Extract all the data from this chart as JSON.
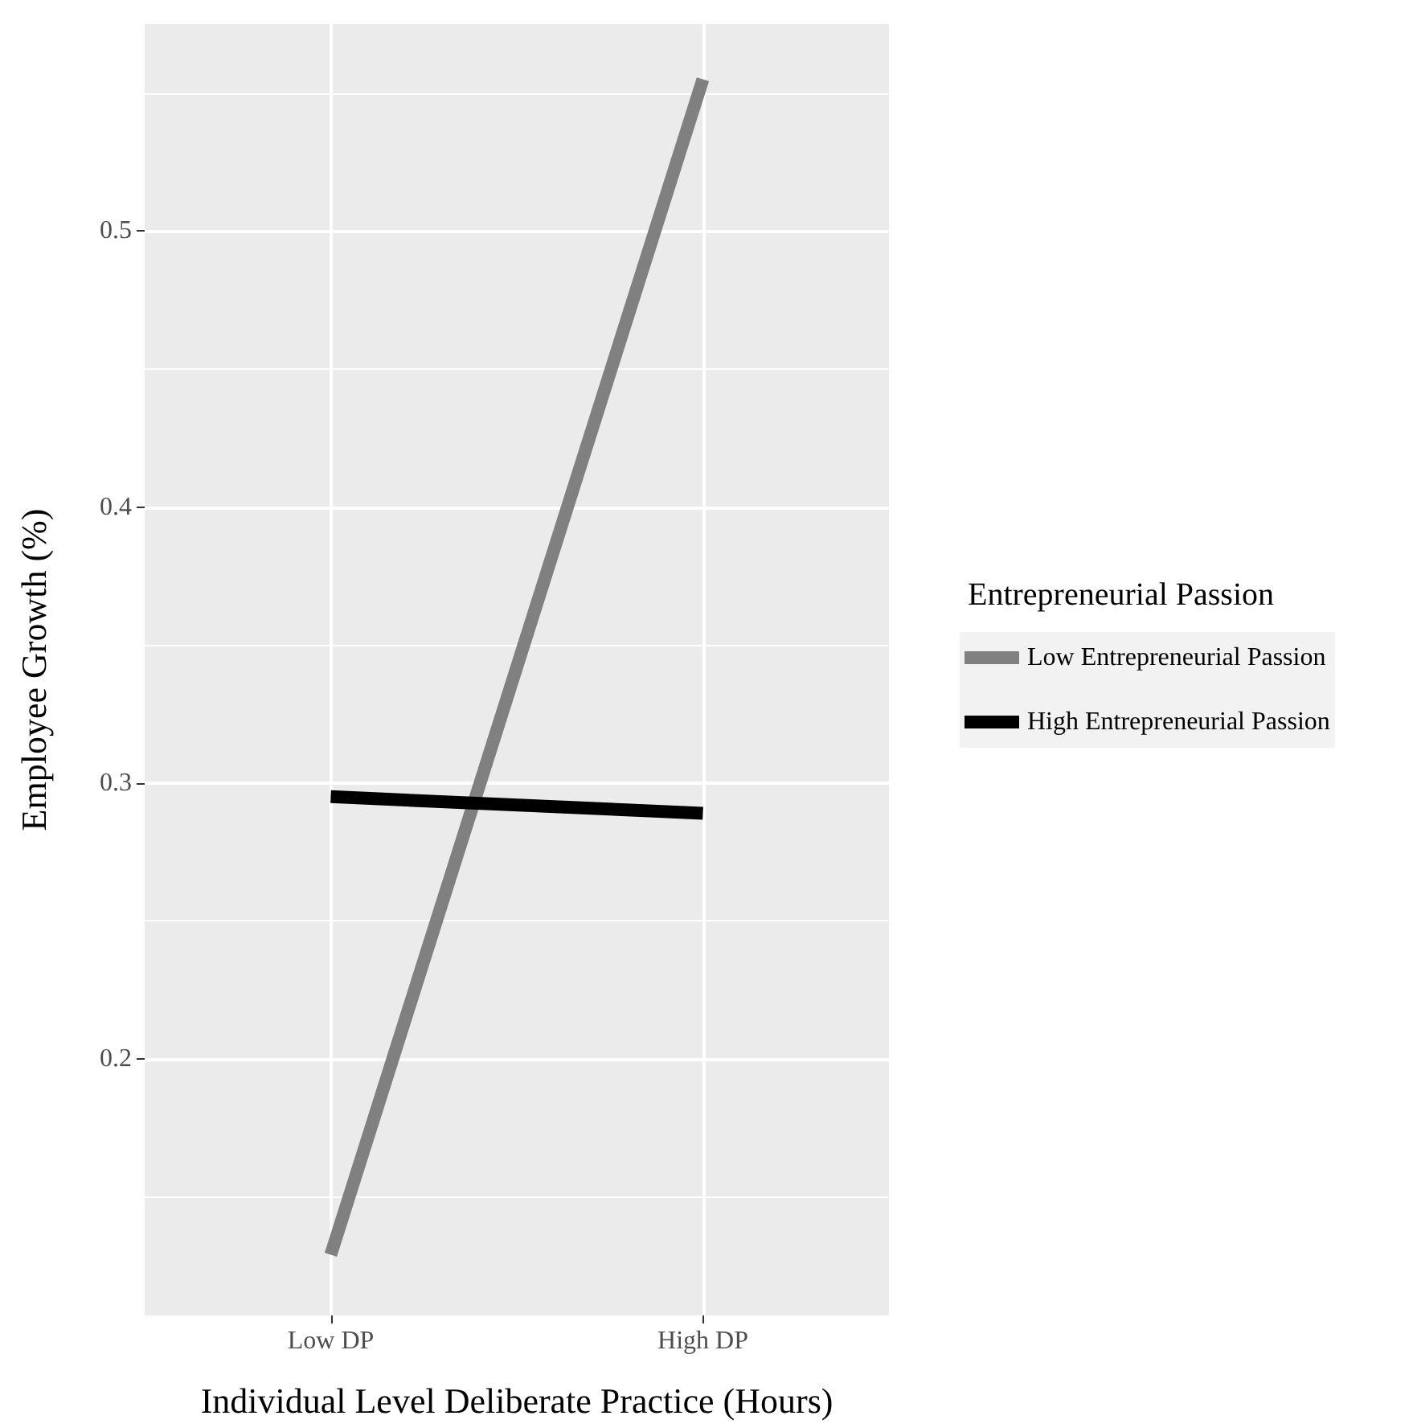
{
  "chart_data": {
    "type": "line",
    "xlabel": "Individual Level Deliberate Practice (Hours)",
    "ylabel": "Employee Growth (%)",
    "legend_title": "Entrepreneurial Passion",
    "categories": [
      "Low DP",
      "High DP"
    ],
    "series": [
      {
        "name": "Low Entrepreneurial Passion",
        "color": "#808080",
        "values": [
          0.129,
          0.555
        ]
      },
      {
        "name": "High Entrepreneurial Passion",
        "color": "#000000",
        "values": [
          0.295,
          0.289
        ]
      }
    ],
    "ylim": [
      0.107,
      0.575
    ],
    "yticks": [
      0.2,
      0.3,
      0.4,
      0.5
    ],
    "grid": true,
    "legend": "right",
    "marker": "none",
    "line_style": "solid"
  }
}
